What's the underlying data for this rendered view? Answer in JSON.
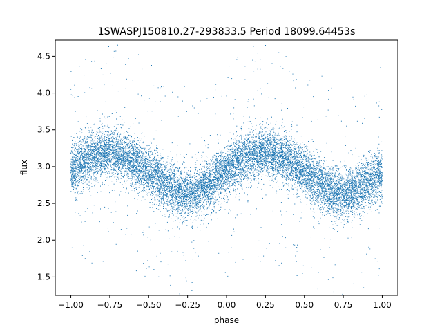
{
  "chart_data": {
    "type": "scatter",
    "title": "1SWASPJ150810.27-293833.5 Period 18099.64453s",
    "xlabel": "phase",
    "ylabel": "flux",
    "xlim": [
      -1.1,
      1.1
    ],
    "ylim": [
      1.25,
      4.72
    ],
    "x_ticks": [
      -1.0,
      -0.75,
      -0.5,
      -0.25,
      0.0,
      0.25,
      0.5,
      0.75,
      1.0
    ],
    "x_tick_labels": [
      "−1.00",
      "−0.75",
      "−0.50",
      "−0.25",
      "0.00",
      "0.25",
      "0.50",
      "0.75",
      "1.00"
    ],
    "y_ticks": [
      1.5,
      2.0,
      2.5,
      3.0,
      3.5,
      4.0,
      4.5
    ],
    "y_tick_labels": [
      "1.5",
      "2.0",
      "2.5",
      "3.0",
      "3.5",
      "4.0",
      "4.5"
    ],
    "grid": false,
    "marker_color": "#1f77b4",
    "series": [
      {
        "phase": [
          -1.0,
          -0.9,
          -0.8,
          -0.75,
          -0.7,
          -0.6,
          -0.5,
          -0.4,
          -0.3,
          -0.25,
          -0.2,
          -0.1,
          0.0,
          0.1,
          0.2,
          0.25,
          0.3,
          0.4,
          0.5,
          0.6,
          0.7,
          0.75,
          0.8,
          0.9,
          1.0
        ],
        "flux_trend": [
          2.95,
          3.1,
          3.18,
          3.2,
          3.18,
          3.08,
          2.92,
          2.76,
          2.64,
          2.62,
          2.64,
          2.76,
          2.95,
          3.1,
          3.18,
          3.2,
          3.18,
          3.08,
          2.92,
          2.76,
          2.64,
          2.62,
          2.64,
          2.76,
          2.9
        ],
        "scatter_sigma": 0.17,
        "point_count": 14000
      }
    ]
  }
}
